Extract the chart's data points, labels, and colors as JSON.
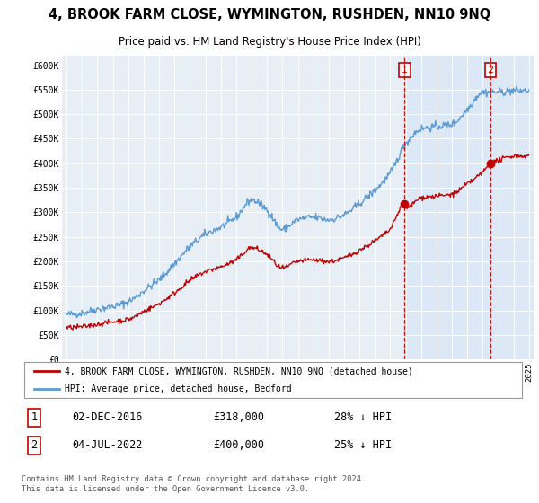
{
  "title1": "4, BROOK FARM CLOSE, WYMINGTON, RUSHDEN, NN10 9NQ",
  "title2": "Price paid vs. HM Land Registry's House Price Index (HPI)",
  "ylim": [
    0,
    620000
  ],
  "yticks": [
    0,
    50000,
    100000,
    150000,
    200000,
    250000,
    300000,
    350000,
    400000,
    450000,
    500000,
    550000,
    600000
  ],
  "legend_line1": "4, BROOK FARM CLOSE, WYMINGTON, RUSHDEN, NN10 9NQ (detached house)",
  "legend_line2": "HPI: Average price, detached house, Bedford",
  "footnote": "Contains HM Land Registry data © Crown copyright and database right 2024.\nThis data is licensed under the Open Government Licence v3.0.",
  "transaction1_date": "02-DEC-2016",
  "transaction1_price": "£318,000",
  "transaction1_hpi": "28% ↓ HPI",
  "transaction1_year": 2016.92,
  "transaction2_date": "04-JUL-2022",
  "transaction2_price": "£400,000",
  "transaction2_hpi": "25% ↓ HPI",
  "transaction2_year": 2022.5,
  "hpi_color": "#5b9bd5",
  "price_color": "#c00000",
  "vline_color": "#c00000",
  "background_plot": "#dce6f1",
  "shade_color": "#dce6f1",
  "grid_color": "#ffffff",
  "transaction1_value": 318000,
  "transaction2_value": 400000
}
